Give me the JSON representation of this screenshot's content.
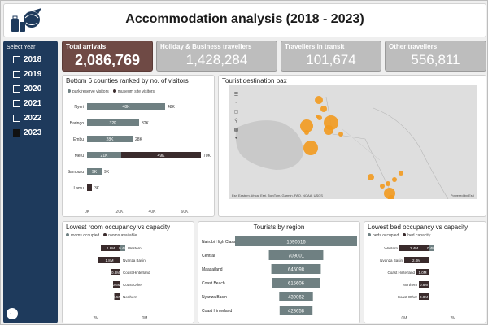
{
  "header": {
    "title": "Accommodation analysis (2018 - 2023)"
  },
  "sidebar": {
    "select_label": "Select Year",
    "years": [
      "2018",
      "2019",
      "2020",
      "2021",
      "2022",
      "2023"
    ],
    "selected_year": "2023"
  },
  "kpis": [
    {
      "label": "Total arrivals",
      "value": "2,086,769"
    },
    {
      "label": "Holiday & Business travellers",
      "value": "1,428,284"
    },
    {
      "label": "Travellers in transit",
      "value": "101,674"
    },
    {
      "label": "Other travellers",
      "value": "556,811"
    }
  ],
  "colors": {
    "sidebar": "#1e3a5c",
    "kpi_primary": "#6f4a45",
    "bar_grey": "#6f8082",
    "bar_dark": "#3a2b2c",
    "bubble": "#f29a1f"
  },
  "counties": {
    "title": "Bottom 6 counties ranked by no. of visitors",
    "legend": [
      "park/reserve visitors",
      "museum site visitors"
    ],
    "chart_data": {
      "type": "bar",
      "categories": [
        "Nyeri",
        "Baringo",
        "Embu",
        "Meru",
        "Samburu",
        "Lamu"
      ],
      "series": [
        {
          "name": "park/reserve visitors",
          "values": [
            48000,
            32000,
            28000,
            21000,
            9000,
            0
          ]
        },
        {
          "name": "museum site visitors",
          "values": [
            0,
            0,
            0,
            49000,
            0,
            3000
          ]
        }
      ],
      "totals": [
        "48K",
        "32K",
        "28K",
        "70K",
        "9K",
        "3K"
      ],
      "segment_labels": [
        [
          "48K",
          ""
        ],
        [
          "32K",
          ""
        ],
        [
          "28K",
          ""
        ],
        [
          "21K",
          "49K"
        ],
        [
          "9K",
          ""
        ],
        [
          "",
          ""
        ]
      ],
      "xticks": [
        "0K",
        "20K",
        "40K",
        "60K"
      ],
      "xlim": [
        0,
        70000
      ]
    }
  },
  "map": {
    "title": "Tourist destination pax",
    "attribution": "Esri Eastern Africa, Esri, TomTom, Garmin, FAO, NOAA, USGS",
    "powered": "Powered by Esri",
    "tool_icons": [
      "layers-icon",
      "selection-icon",
      "rectangle-select-icon",
      "search-icon",
      "bookmark-icon",
      "person-icon"
    ]
  },
  "room": {
    "title": "Lowest room occupancy vs capacity",
    "legend": [
      "rooms occupied",
      "rooms available"
    ],
    "chart_data": {
      "type": "bar",
      "categories": [
        "Western",
        "Nyanza Basin",
        "Coast Hinterland",
        "Coast Other",
        "Northern"
      ],
      "series": [
        {
          "name": "rooms occupied",
          "values": [
            400000,
            0,
            0,
            0,
            0
          ]
        },
        {
          "name": "rooms available",
          "values": [
            1600000,
            1800000,
            800000,
            600000,
            500000
          ]
        }
      ],
      "segment_labels": [
        [
          "0.4M",
          "1.6M"
        ],
        [
          "",
          "1.8M"
        ],
        [
          "",
          "0.8M"
        ],
        [
          "",
          "0.6M"
        ],
        [
          "",
          "0.5M"
        ]
      ],
      "xticks": [
        "2M",
        "0M"
      ]
    }
  },
  "region": {
    "title": "Tourists by region",
    "chart_data": {
      "type": "bar",
      "categories": [
        "Nairobi High Class",
        "Central",
        "Maasailand",
        "Coast Beach",
        "Nyanza Basin",
        "Coast Hinterland"
      ],
      "values": [
        1590516,
        709001,
        645098,
        615606,
        439062,
        428658
      ],
      "value_labels": [
        "1590516",
        "709001",
        "645098",
        "615606",
        "439062",
        "428658"
      ]
    }
  },
  "bed": {
    "title": "Lowest bed occupancy vs capacity",
    "legend": [
      "beds occupied",
      "bed capacity"
    ],
    "chart_data": {
      "type": "bar",
      "categories": [
        "Western",
        "Nyanza Basin",
        "Coast Hinterland",
        "Northern",
        "Coast Other"
      ],
      "series": [
        {
          "name": "beds occupied",
          "values": [
            400000,
            0,
            0,
            0,
            0
          ]
        },
        {
          "name": "bed capacity",
          "values": [
            2400000,
            2000000,
            1000000,
            800000,
            800000
          ]
        }
      ],
      "segment_labels": [
        [
          "0.4M",
          "2.4M"
        ],
        [
          "",
          "2.0M"
        ],
        [
          "",
          "1.0M"
        ],
        [
          "",
          "0.8M"
        ],
        [
          "",
          "0.8M"
        ]
      ],
      "xticks": [
        "0M",
        "2M"
      ]
    }
  }
}
